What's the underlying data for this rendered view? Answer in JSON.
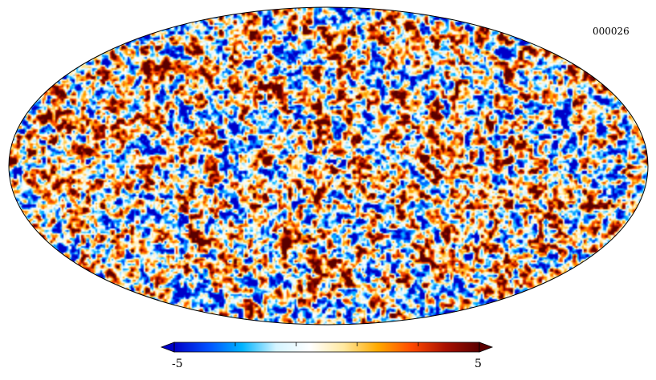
{
  "map": {
    "label": "000026",
    "projection": "mollweide",
    "colormap": [
      "#0000c8",
      "#0050ff",
      "#00b4ff",
      "#d4f4ff",
      "#ffffff",
      "#ffe8a0",
      "#ffaa00",
      "#ff4a00",
      "#aa1000",
      "#5a0000"
    ]
  },
  "colorbar": {
    "min_label": "-5",
    "max_label": "5",
    "min": -5,
    "max": 5,
    "tick_count": 6
  }
}
